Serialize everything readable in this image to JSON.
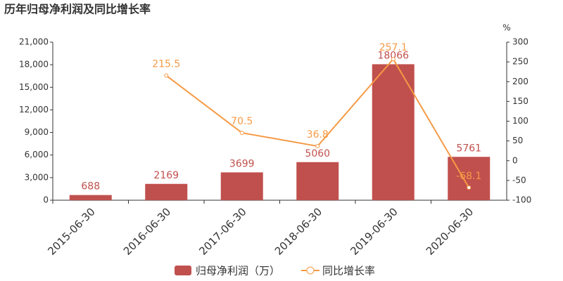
{
  "chart_data": {
    "type": "bar_line",
    "title": "历年归母净利润及同比增长率",
    "y2label": "%",
    "categories": [
      "2015-06-30",
      "2016-06-30",
      "2017-06-30",
      "2018-06-30",
      "2019-06-30",
      "2020-06-30"
    ],
    "series": [
      {
        "name": "归母净利润（万）",
        "type": "bar",
        "color": "#c0504d",
        "values": [
          688,
          2169,
          3699,
          5060,
          18066,
          5761
        ]
      },
      {
        "name": "同比增长率",
        "type": "line",
        "axis": "y2",
        "color": "#f59a45",
        "values": [
          null,
          215.5,
          70.5,
          36.8,
          257.1,
          -68.1
        ]
      }
    ],
    "ylim": [
      0,
      21000
    ],
    "yticks": [
      0,
      {
        "value": 3000,
        "label": "3,000"
      },
      {
        "value": 6000,
        "label": "6,000"
      },
      {
        "value": 9000,
        "label": "9,000"
      },
      {
        "value": 12000,
        "label": "12,000"
      },
      {
        "value": 15000,
        "label": "15,000"
      },
      {
        "value": 18000,
        "label": "18,000"
      },
      {
        "value": 21000,
        "label": "21,000"
      }
    ],
    "y2lim": [
      -100,
      300
    ],
    "y2ticks": [
      -100,
      -50,
      0,
      50,
      100,
      150,
      200,
      250,
      300
    ],
    "grid": false
  }
}
